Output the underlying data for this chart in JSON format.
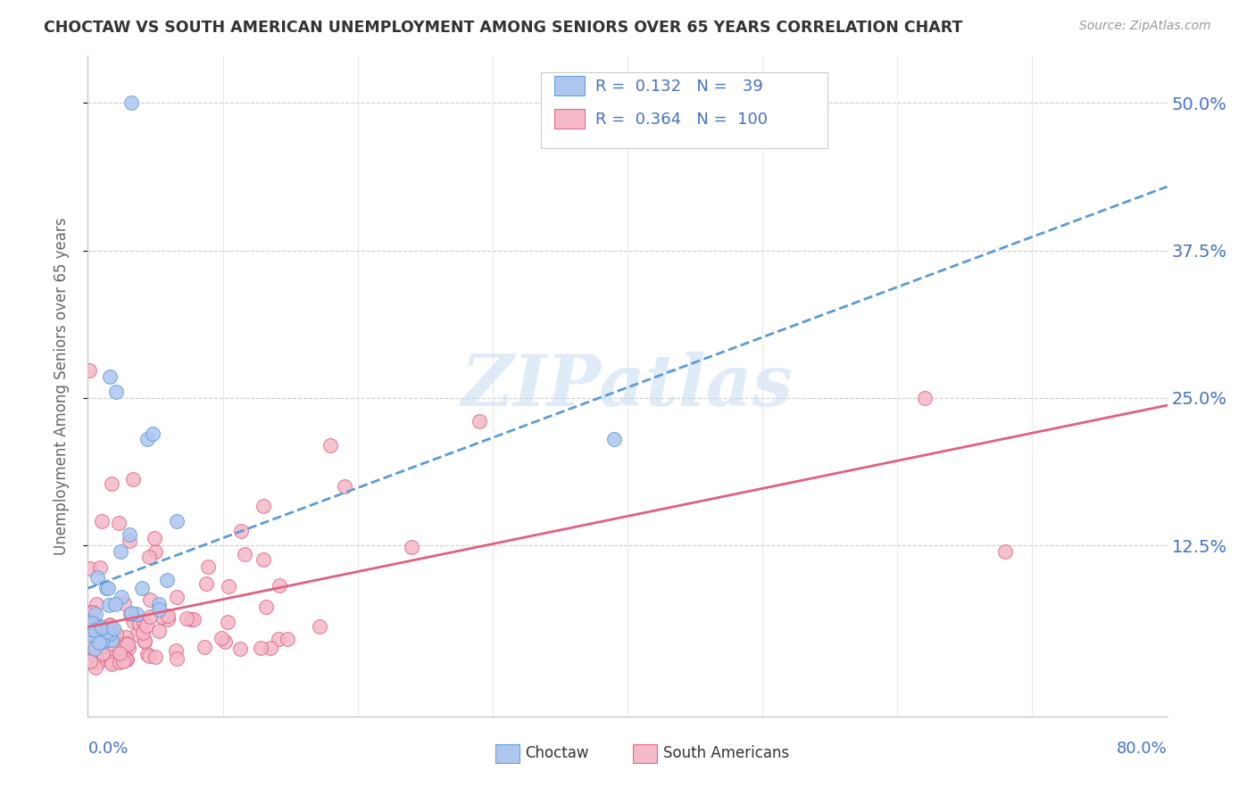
{
  "title": "CHOCTAW VS SOUTH AMERICAN UNEMPLOYMENT AMONG SENIORS OVER 65 YEARS CORRELATION CHART",
  "source": "Source: ZipAtlas.com",
  "ylabel": "Unemployment Among Seniors over 65 years",
  "ytick_labels": [
    "12.5%",
    "25.0%",
    "37.5%",
    "50.0%"
  ],
  "ytick_values": [
    0.125,
    0.25,
    0.375,
    0.5
  ],
  "xlim": [
    0.0,
    0.8
  ],
  "ylim": [
    -0.02,
    0.54
  ],
  "watermark": "ZIPatlas",
  "choctaw_color": "#aec6f0",
  "choctaw_edge": "#5b9bd5",
  "south_color": "#f4b8c8",
  "south_edge": "#e06080",
  "choctaw_R": 0.132,
  "choctaw_N": 39,
  "south_R": 0.364,
  "south_N": 100,
  "legend_text_color": "#4472c4",
  "grid_color": "#cccccc",
  "title_color": "#333333",
  "source_color": "#999999",
  "ylabel_color": "#666666"
}
